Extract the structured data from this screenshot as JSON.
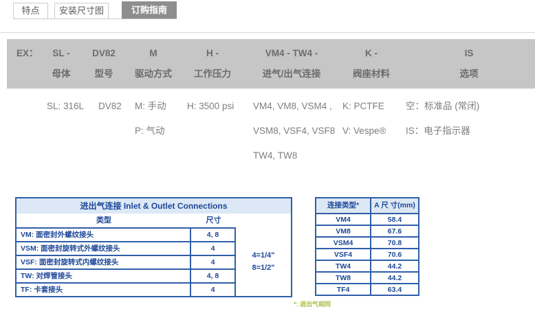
{
  "tabs": [
    {
      "label": "特点",
      "active": false
    },
    {
      "label": "安装尺寸图",
      "active": false
    },
    {
      "label": "订购指南",
      "active": true
    }
  ],
  "order_code": {
    "prefix": "EX：",
    "columns": [
      {
        "code": "SL -",
        "label": "母体",
        "values": [
          "SL: 316L"
        ]
      },
      {
        "code": "DV82",
        "label": "型号",
        "values": [
          "DV82"
        ]
      },
      {
        "code": "M",
        "label": "驱动方式",
        "values": [
          "M: 手动",
          "P: 气动"
        ]
      },
      {
        "code": "H -",
        "label": "工作压力",
        "values": [
          "H: 3500 psi"
        ]
      },
      {
        "code": "VM4 - TW4 -",
        "label": "进气/出气连接",
        "values": [
          "VM4, VM8, VSM4 ,",
          "VSM8, VSF4, VSF8",
          "TW4, TW8"
        ]
      },
      {
        "code": "K -",
        "label": "阀座材料",
        "values": [
          "K: PCTFE",
          "V: Vespe®"
        ]
      },
      {
        "code": "IS",
        "label": "选项",
        "values": [
          "空：标准品 (常闭)",
          "IS：电子指示器"
        ]
      }
    ]
  },
  "connections_table": {
    "title": "进出气连接 Inlet & Outlet Connections",
    "col_type": "类型",
    "col_size": "尺寸",
    "rows": [
      {
        "type": "VM: 面密封外螺纹接头",
        "size": "4, 8"
      },
      {
        "type": "VSM: 面密封旋转式外螺纹接头",
        "size": "4"
      },
      {
        "type": "VSF: 面密封旋转式内螺纹接头",
        "size": "4"
      },
      {
        "type": "TW: 对焊管接头",
        "size": "4, 8"
      },
      {
        "type": "TF: 卡套接头",
        "size": "4"
      }
    ],
    "notes": [
      "4=1/4\"",
      "8=1/2\""
    ]
  },
  "dimensions_table": {
    "col_type": "连接类型*",
    "col_dim": "A 尺 寸(mm)",
    "rows": [
      {
        "type": "VM4",
        "dim": "58.4"
      },
      {
        "type": "VM8",
        "dim": "67.6"
      },
      {
        "type": "VSM4",
        "dim": "70.8"
      },
      {
        "type": "VSF4",
        "dim": "70.6"
      },
      {
        "type": "TW4",
        "dim": "44.2"
      },
      {
        "type": "TW8",
        "dim": "44.2"
      },
      {
        "type": "TF4",
        "dim": "63.4"
      }
    ],
    "footnote": "*: 进出气相同"
  },
  "colors": {
    "active_tab_bg": "#8e8e8e",
    "tab_border": "#cccccc",
    "code_header_bg": "#c6c6c6",
    "code_header_text": "#6c6c6c",
    "body_text": "#7e7e7e",
    "table_border_blue": "#2e5ea8",
    "table_text_blue": "#1c4798",
    "table_header_bg": "#dce8f5",
    "footnote_green": "#a9bf40"
  }
}
